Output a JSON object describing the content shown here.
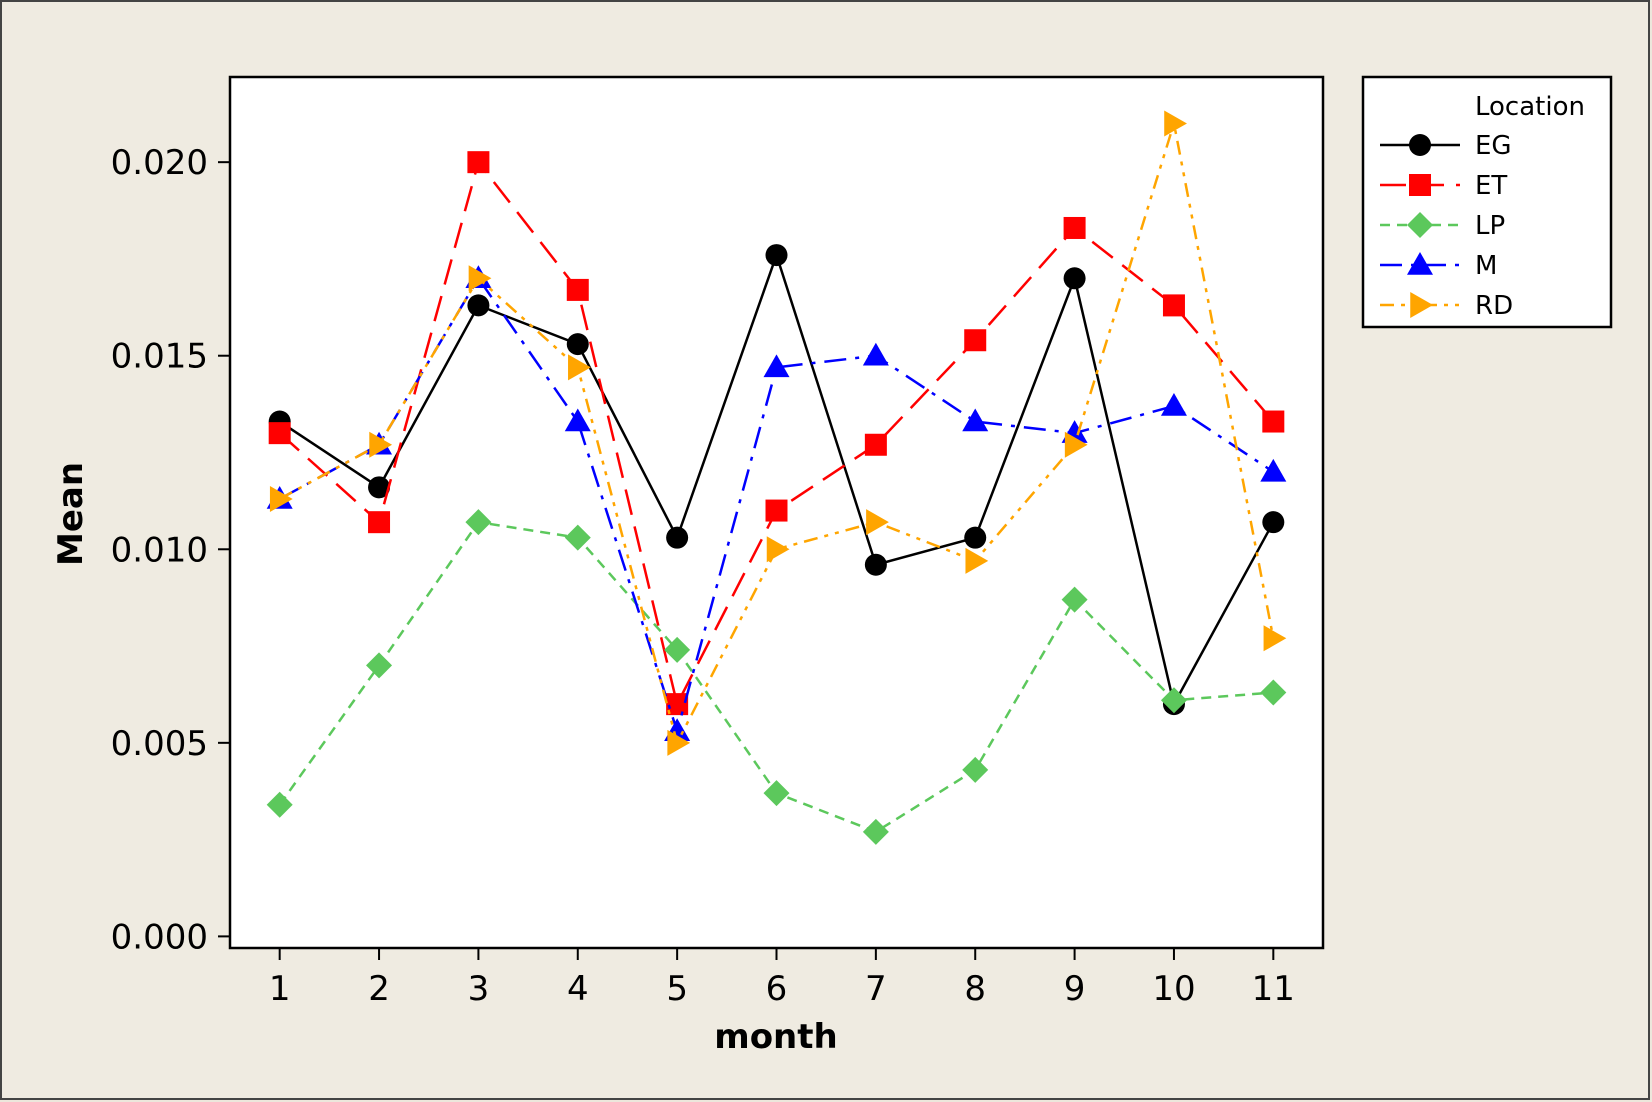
{
  "chart_data": {
    "type": "line",
    "xlabel": "month",
    "ylabel": "Mean",
    "x": [
      1,
      2,
      3,
      4,
      5,
      6,
      7,
      8,
      9,
      10,
      11
    ],
    "xlim": [
      0.5,
      11.5
    ],
    "ylim": [
      -0.0003,
      0.0222
    ],
    "yticks": [
      0.0,
      0.005,
      0.01,
      0.015,
      0.02
    ],
    "ytick_labels": [
      "0.000",
      "0.005",
      "0.010",
      "0.015",
      "0.020"
    ],
    "legend": {
      "title": "Location",
      "position": "right-outside-top"
    },
    "series": [
      {
        "name": "EG",
        "color": "#000000",
        "marker": "circle",
        "dash": "solid",
        "values": [
          0.0133,
          0.0116,
          0.0163,
          0.0153,
          0.0103,
          0.0176,
          0.0096,
          0.0103,
          0.017,
          0.006,
          0.0107
        ]
      },
      {
        "name": "ET",
        "color": "#ff0000",
        "marker": "square",
        "dash": "long-dash",
        "values": [
          0.013,
          0.0107,
          0.02,
          0.0167,
          0.006,
          0.011,
          0.0127,
          0.0154,
          0.0183,
          0.0163,
          0.0133
        ]
      },
      {
        "name": "LP",
        "color": "#5cc85c",
        "marker": "diamond",
        "dash": "short-dash",
        "values": [
          0.0034,
          0.007,
          0.0107,
          0.0103,
          0.0074,
          0.0037,
          0.0027,
          0.0043,
          0.0087,
          0.0061,
          0.0063
        ]
      },
      {
        "name": "M",
        "color": "#0000ff",
        "marker": "triangle-up",
        "dash": "dash-dot",
        "values": [
          0.0113,
          0.0127,
          0.017,
          0.0133,
          0.0053,
          0.0147,
          0.015,
          0.0133,
          0.013,
          0.0137,
          0.012
        ]
      },
      {
        "name": "RD",
        "color": "#ffa500",
        "marker": "triangle-right",
        "dash": "dash-dot-dot",
        "values": [
          0.0113,
          0.0127,
          0.017,
          0.0147,
          0.005,
          0.01,
          0.0107,
          0.0097,
          0.0127,
          0.021,
          0.0077
        ]
      }
    ]
  }
}
